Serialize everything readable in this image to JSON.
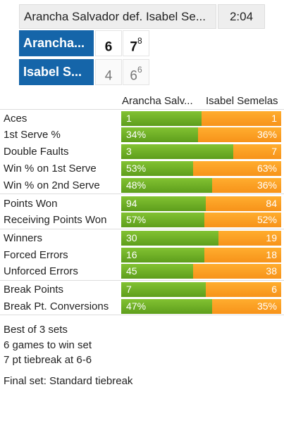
{
  "header": {
    "title": "Arancha Salvador def. Isabel Se...",
    "duration": "2:04"
  },
  "players": [
    {
      "name": "Arancha...",
      "sets": [
        {
          "games": "6",
          "tiebreak": ""
        },
        {
          "games": "7",
          "tiebreak": "8"
        }
      ]
    },
    {
      "name": "Isabel S...",
      "sets": [
        {
          "games": "4",
          "tiebreak": ""
        },
        {
          "games": "6",
          "tiebreak": "6"
        }
      ]
    }
  ],
  "stats_header": {
    "player1": "Arancha Salv...",
    "player2": "Isabel Semelas"
  },
  "stats": [
    {
      "label": "Aces",
      "p1": "1",
      "p2": "1",
      "p1_share": 0.5
    },
    {
      "label": "1st Serve %",
      "p1": "34%",
      "p2": "36%",
      "p1_share": 0.48
    },
    {
      "label": "Double Faults",
      "p1": "3",
      "p2": "7",
      "p1_share": 0.7
    },
    {
      "label": "Win % on 1st Serve",
      "p1": "53%",
      "p2": "63%",
      "p1_share": 0.45
    },
    {
      "label": "Win % on 2nd Serve",
      "p1": "48%",
      "p2": "36%",
      "p1_share": 0.57
    },
    {
      "label": "Points Won",
      "p1": "94",
      "p2": "84",
      "p1_share": 0.53
    },
    {
      "label": "Receiving Points Won",
      "p1": "57%",
      "p2": "52%",
      "p1_share": 0.52
    },
    {
      "label": "Winners",
      "p1": "30",
      "p2": "19",
      "p1_share": 0.61
    },
    {
      "label": "Forced Errors",
      "p1": "16",
      "p2": "18",
      "p1_share": 0.52
    },
    {
      "label": "Unforced Errors",
      "p1": "45",
      "p2": "38",
      "p1_share": 0.45
    },
    {
      "label": "Break Points",
      "p1": "7",
      "p2": "6",
      "p1_share": 0.53
    },
    {
      "label": "Break Pt. Conversions",
      "p1": "47%",
      "p2": "35%",
      "p1_share": 0.57
    }
  ],
  "format": {
    "best_of": "Best of 3 sets",
    "games_per_set": "6 games to win set",
    "tiebreak_rule": "7 pt tiebreak at 6-6",
    "final_set": "Final set: Standard tiebreak"
  },
  "colors": {
    "player_box": "#1565a9",
    "bar_p1": "#6aab22",
    "bar_p2": "#f79a1f"
  }
}
